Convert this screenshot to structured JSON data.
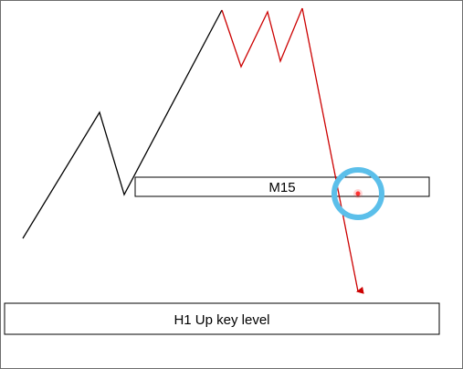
{
  "zones": {
    "m15_label": "M15",
    "h1_label": "H1 Up key level"
  },
  "colors": {
    "background": "#ffffff",
    "frame": "#6e6e6e",
    "uptrend_line": "#000000",
    "top_line": "#cc0000",
    "drop_arrow": "#cc0000",
    "highlight_circle": "#5bbfea",
    "highlight_dot": "#ff3333"
  }
}
